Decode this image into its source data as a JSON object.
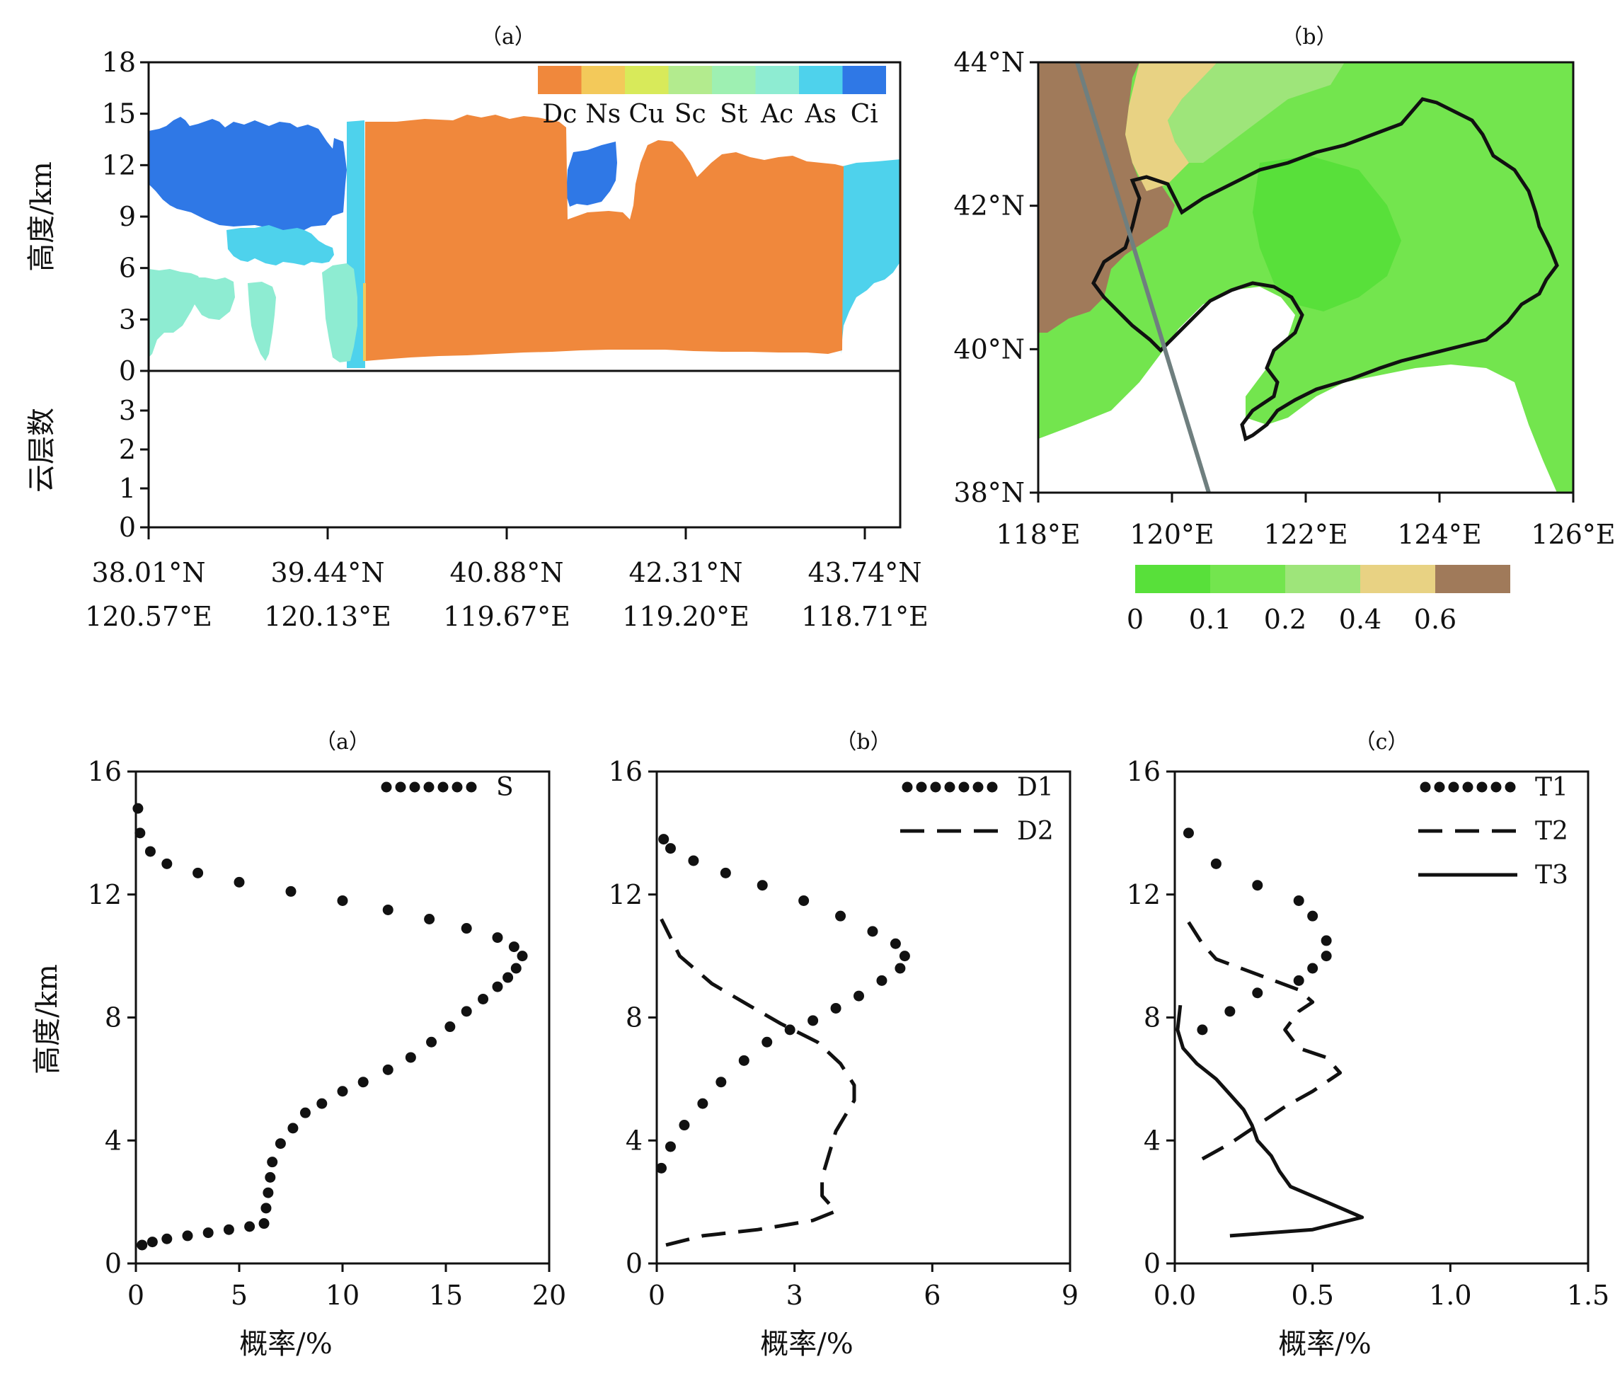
{
  "top_a": {
    "panel": "（a）",
    "ylabel_top": "高度/km",
    "ylabel_bottom": "云层数",
    "legend": [
      "Dc",
      "Ns",
      "Cu",
      "Sc",
      "St",
      "Ac",
      "As",
      "Ci"
    ],
    "legend_colors": [
      "#f0883c",
      "#f3c95a",
      "#d8ea5a",
      "#b3eb8e",
      "#9ef0b2",
      "#8eecd2",
      "#4ed2ec",
      "#2f78e6"
    ],
    "yticks_top": [
      "0",
      "3",
      "6",
      "9",
      "12",
      "15",
      "18"
    ],
    "yticks_bottom": [
      "0",
      "1",
      "2",
      "3"
    ],
    "xticks_lat": [
      "38.01°N",
      "39.44°N",
      "40.88°N",
      "42.31°N",
      "43.74°N"
    ],
    "xticks_lon": [
      "120.57°E",
      "120.13°E",
      "119.67°E",
      "119.20°E",
      "118.71°E"
    ]
  },
  "top_b": {
    "panel": "（b）",
    "lat_ticks": [
      "38°N",
      "40°N",
      "42°N",
      "44°N"
    ],
    "lon_ticks": [
      "118°E",
      "120°E",
      "122°E",
      "124°E",
      "126°E"
    ],
    "colorbar_labels": [
      "0",
      "0.1",
      "0.2",
      "0.4",
      "0.6"
    ],
    "colorbar_colors": [
      "#58e03a",
      "#73e54e",
      "#9ee57a",
      "#e8d283",
      "#a07a5a"
    ]
  },
  "profiles": {
    "ylabel": "高度/km",
    "xlabel": "概率/%",
    "titles": [
      "（a）",
      "（b）",
      "（c）"
    ],
    "yticks": [
      "0",
      "4",
      "8",
      "12",
      "16"
    ],
    "xticks": [
      [
        "0",
        "5",
        "10",
        "15",
        "20"
      ],
      [
        "0",
        "3",
        "6",
        "9"
      ],
      [
        "0.0",
        "0.5",
        "1.0",
        "1.5"
      ]
    ],
    "legend_a": [
      "S"
    ],
    "legend_b": [
      "D1",
      "D2"
    ],
    "legend_c": [
      "T1",
      "T2",
      "T3"
    ]
  },
  "chart_data": [
    {
      "type": "area",
      "title": "（a）",
      "ylabel": "高度/km",
      "ylim": [
        0,
        18
      ],
      "series": [
        "Dc",
        "Ns",
        "Cu",
        "Sc",
        "St",
        "Ac",
        "As",
        "Ci"
      ]
    },
    {
      "type": "heatmap",
      "title": "（b）",
      "xlim": [
        118,
        126
      ],
      "ylim": [
        38,
        44
      ],
      "colorbar": [
        0,
        0.1,
        0.2,
        0.4,
        0.6
      ]
    },
    {
      "type": "scatter",
      "title": "（a）",
      "xlabel": "概率/%",
      "ylabel": "高度/km",
      "xlim": [
        0,
        20
      ],
      "ylim": [
        0,
        16
      ],
      "series": [
        {
          "name": "S",
          "x": [
            0.3,
            0.8,
            1.5,
            2.5,
            3.5,
            4.5,
            5.5,
            6.2,
            6.3,
            6.4,
            6.5,
            6.6,
            7.0,
            7.6,
            8.2,
            9.0,
            10.0,
            11.0,
            12.2,
            13.3,
            14.3,
            15.2,
            16.0,
            16.8,
            17.5,
            18.0,
            18.4,
            18.7,
            18.3,
            17.5,
            16.0,
            14.2,
            12.2,
            10.0,
            7.5,
            5.0,
            3.0,
            1.5,
            0.7,
            0.2,
            0.1
          ],
          "y": [
            0.6,
            0.7,
            0.8,
            0.9,
            1.0,
            1.1,
            1.2,
            1.3,
            1.8,
            2.3,
            2.8,
            3.3,
            3.9,
            4.4,
            4.9,
            5.2,
            5.6,
            5.9,
            6.3,
            6.7,
            7.2,
            7.7,
            8.2,
            8.6,
            9.0,
            9.3,
            9.6,
            10.0,
            10.3,
            10.6,
            10.9,
            11.2,
            11.5,
            11.8,
            12.1,
            12.4,
            12.7,
            13.0,
            13.4,
            14.0,
            14.8
          ]
        }
      ]
    },
    {
      "type": "line",
      "title": "（b）",
      "xlabel": "概率/%",
      "ylabel": "高度/km",
      "xlim": [
        0,
        9
      ],
      "ylim": [
        0,
        16
      ],
      "series": [
        {
          "name": "D1",
          "x": [
            0.1,
            0.3,
            0.6,
            1.0,
            1.4,
            1.9,
            2.4,
            2.9,
            3.4,
            3.9,
            4.4,
            4.9,
            5.3,
            5.4,
            5.2,
            4.7,
            4.0,
            3.2,
            2.3,
            1.5,
            0.8,
            0.3,
            0.15
          ],
          "y": [
            3.1,
            3.8,
            4.5,
            5.2,
            5.9,
            6.6,
            7.2,
            7.6,
            7.9,
            8.3,
            8.7,
            9.2,
            9.6,
            10.0,
            10.4,
            10.8,
            11.3,
            11.8,
            12.3,
            12.7,
            13.1,
            13.5,
            13.8
          ]
        },
        {
          "name": "D2",
          "x": [
            0.2,
            1.0,
            2.2,
            3.4,
            3.9,
            3.6,
            3.6,
            3.7,
            3.8,
            3.9,
            4.1,
            4.3,
            4.3,
            4.0,
            3.5,
            2.7,
            2.0,
            1.2,
            0.5,
            0.1
          ],
          "y": [
            0.6,
            0.9,
            1.1,
            1.4,
            1.7,
            2.2,
            2.8,
            3.3,
            3.8,
            4.3,
            4.8,
            5.3,
            5.8,
            6.5,
            7.2,
            7.8,
            8.4,
            9.1,
            10.0,
            11.2
          ]
        }
      ]
    },
    {
      "type": "line",
      "title": "（c）",
      "xlabel": "概率/%",
      "ylabel": "高度/km",
      "xlim": [
        0,
        1.5
      ],
      "ylim": [
        0,
        16
      ],
      "series": [
        {
          "name": "T1",
          "x": [
            0.1,
            0.2,
            0.3,
            0.45,
            0.5,
            0.55,
            0.55,
            0.5,
            0.45,
            0.3,
            0.15,
            0.05
          ],
          "y": [
            7.6,
            8.2,
            8.8,
            9.2,
            9.6,
            10.0,
            10.5,
            11.3,
            11.8,
            12.3,
            13.0,
            14.0
          ]
        },
        {
          "name": "T2",
          "x": [
            0.1,
            0.2,
            0.3,
            0.4,
            0.5,
            0.6,
            0.55,
            0.45,
            0.4,
            0.45,
            0.5,
            0.45,
            0.3,
            0.15,
            0.1,
            0.05
          ],
          "y": [
            3.4,
            3.9,
            4.5,
            5.1,
            5.6,
            6.2,
            6.7,
            7.0,
            7.6,
            8.2,
            8.5,
            8.9,
            9.4,
            9.9,
            10.4,
            11.1
          ]
        },
        {
          "name": "T3",
          "x": [
            0.2,
            0.5,
            0.68,
            0.55,
            0.42,
            0.38,
            0.35,
            0.3,
            0.28,
            0.25,
            0.2,
            0.15,
            0.08,
            0.03,
            0.01,
            0.02
          ],
          "y": [
            0.9,
            1.1,
            1.5,
            2.0,
            2.5,
            3.0,
            3.5,
            4.0,
            4.5,
            5.0,
            5.5,
            6.0,
            6.5,
            7.0,
            7.6,
            8.4
          ]
        }
      ]
    }
  ]
}
